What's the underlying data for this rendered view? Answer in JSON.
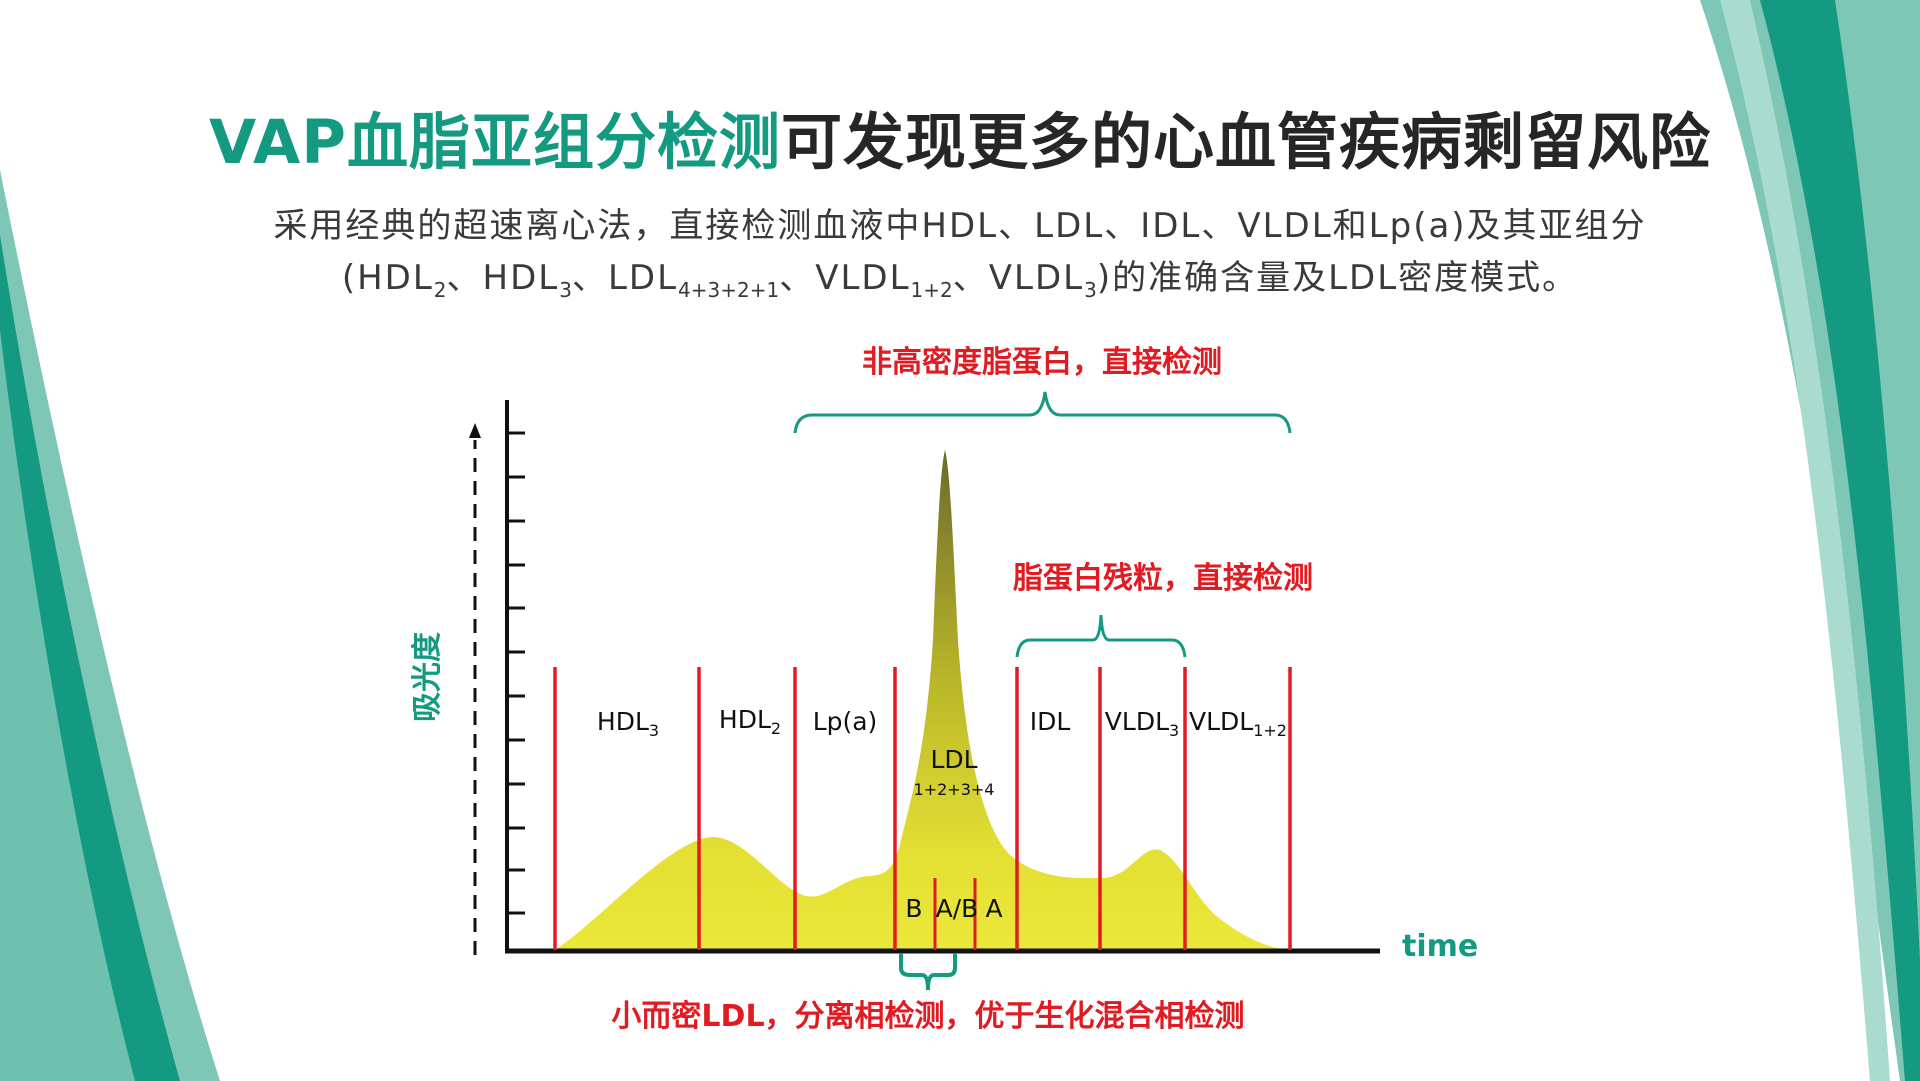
{
  "title": {
    "accent": "VAP血脂亚组分检测",
    "rest": "可发现更多的心血管疾病剩留风险"
  },
  "subtitle": {
    "line1": "采用经典的超速离心法，直接检测血液中HDL、LDL、IDL、VLDL和Lp(a)及其亚组分",
    "line2": {
      "open": "(",
      "hdl2_main": "HDL",
      "hdl2_sub": "2",
      "sep1": "、",
      "hdl3_main": "HDL",
      "hdl3_sub": "3",
      "sep2": "、",
      "ldl_main": "LDL",
      "ldl_sub": "4+3+2+1",
      "sep3": "、",
      "vldl12_main": "VLDL",
      "vldl12_sub": "1+2",
      "sep4": "、",
      "vldl3_main": "VLDL",
      "vldl3_sub": "3",
      "tail": ")的准确含量及LDL密度模式。"
    }
  },
  "diagram": {
    "ylabel": "吸光度",
    "xlabel": "time",
    "note_top": "非高密度脂蛋白，直接检测",
    "note_mid": "脂蛋白残粒，直接检测",
    "note_bottom": "小而密LDL，分离相检测，优于生化混合相检测",
    "regions": {
      "hdl3_main": "HDL",
      "hdl3_sub": "3",
      "hdl2_main": "HDL",
      "hdl2_sub": "2",
      "lpa": "Lp(a)",
      "ldl_main": "LDL",
      "ldl_sub": "1+2+3+4",
      "idl": "IDL",
      "vldl3_main": "VLDL",
      "vldl3_sub": "3",
      "vldl12_main": "VLDL",
      "vldl12_sub": "1+2"
    },
    "ldl_patterns": [
      "B",
      "A/B",
      "A"
    ],
    "colors": {
      "accent_green": "#139a80",
      "divider_red": "#e11b22",
      "curve_yellow": "#ebe83a",
      "peak_olive": "#6b6a2b"
    }
  }
}
